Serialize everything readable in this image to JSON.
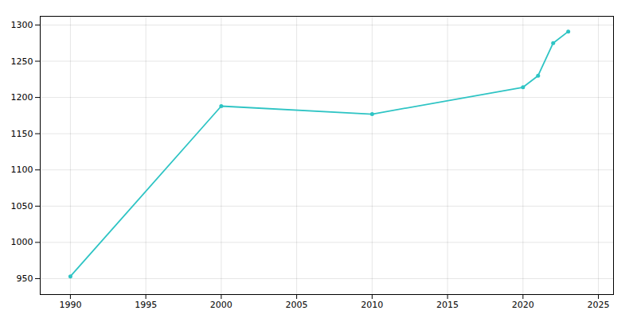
{
  "chart_data": {
    "type": "line",
    "x": [
      1990,
      2000,
      2010,
      2020,
      2021,
      2022,
      2023
    ],
    "values": [
      953,
      1188,
      1177,
      1214,
      1230,
      1275,
      1291
    ],
    "color": "#2EC4C4",
    "marker": "circle",
    "xlim": [
      1988,
      2026
    ],
    "ylim": [
      928,
      1312
    ],
    "xticks": [
      1990,
      1995,
      2000,
      2005,
      2010,
      2015,
      2020,
      2025
    ],
    "yticks": [
      950,
      1000,
      1050,
      1100,
      1150,
      1200,
      1250,
      1300
    ],
    "grid": true
  }
}
